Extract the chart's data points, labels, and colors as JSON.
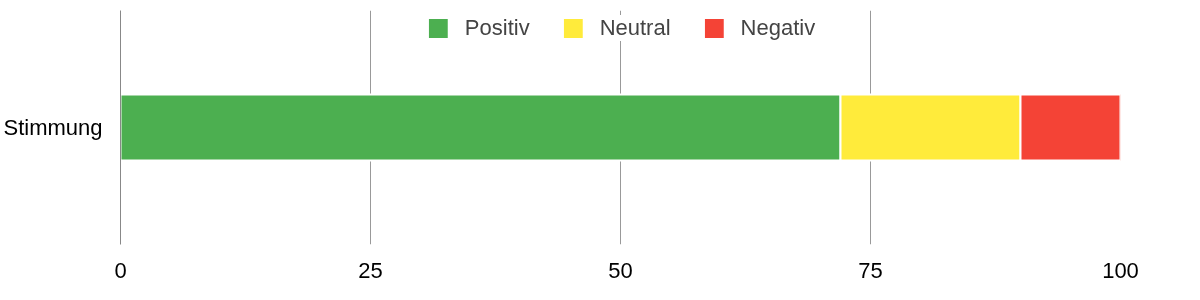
{
  "chart_data": {
    "type": "bar",
    "orientation": "horizontal",
    "stacked": true,
    "categories": [
      "Stimmung"
    ],
    "series": [
      {
        "name": "Positiv",
        "color": "#4caf50",
        "values": [
          72
        ]
      },
      {
        "name": "Neutral",
        "color": "#ffeb3b",
        "values": [
          18
        ]
      },
      {
        "name": "Negativ",
        "color": "#f44336",
        "values": [
          10
        ]
      }
    ],
    "xlim": [
      0,
      100
    ],
    "xticks": [
      0,
      25,
      50,
      75,
      100
    ],
    "grid": "x",
    "legend": "top"
  }
}
